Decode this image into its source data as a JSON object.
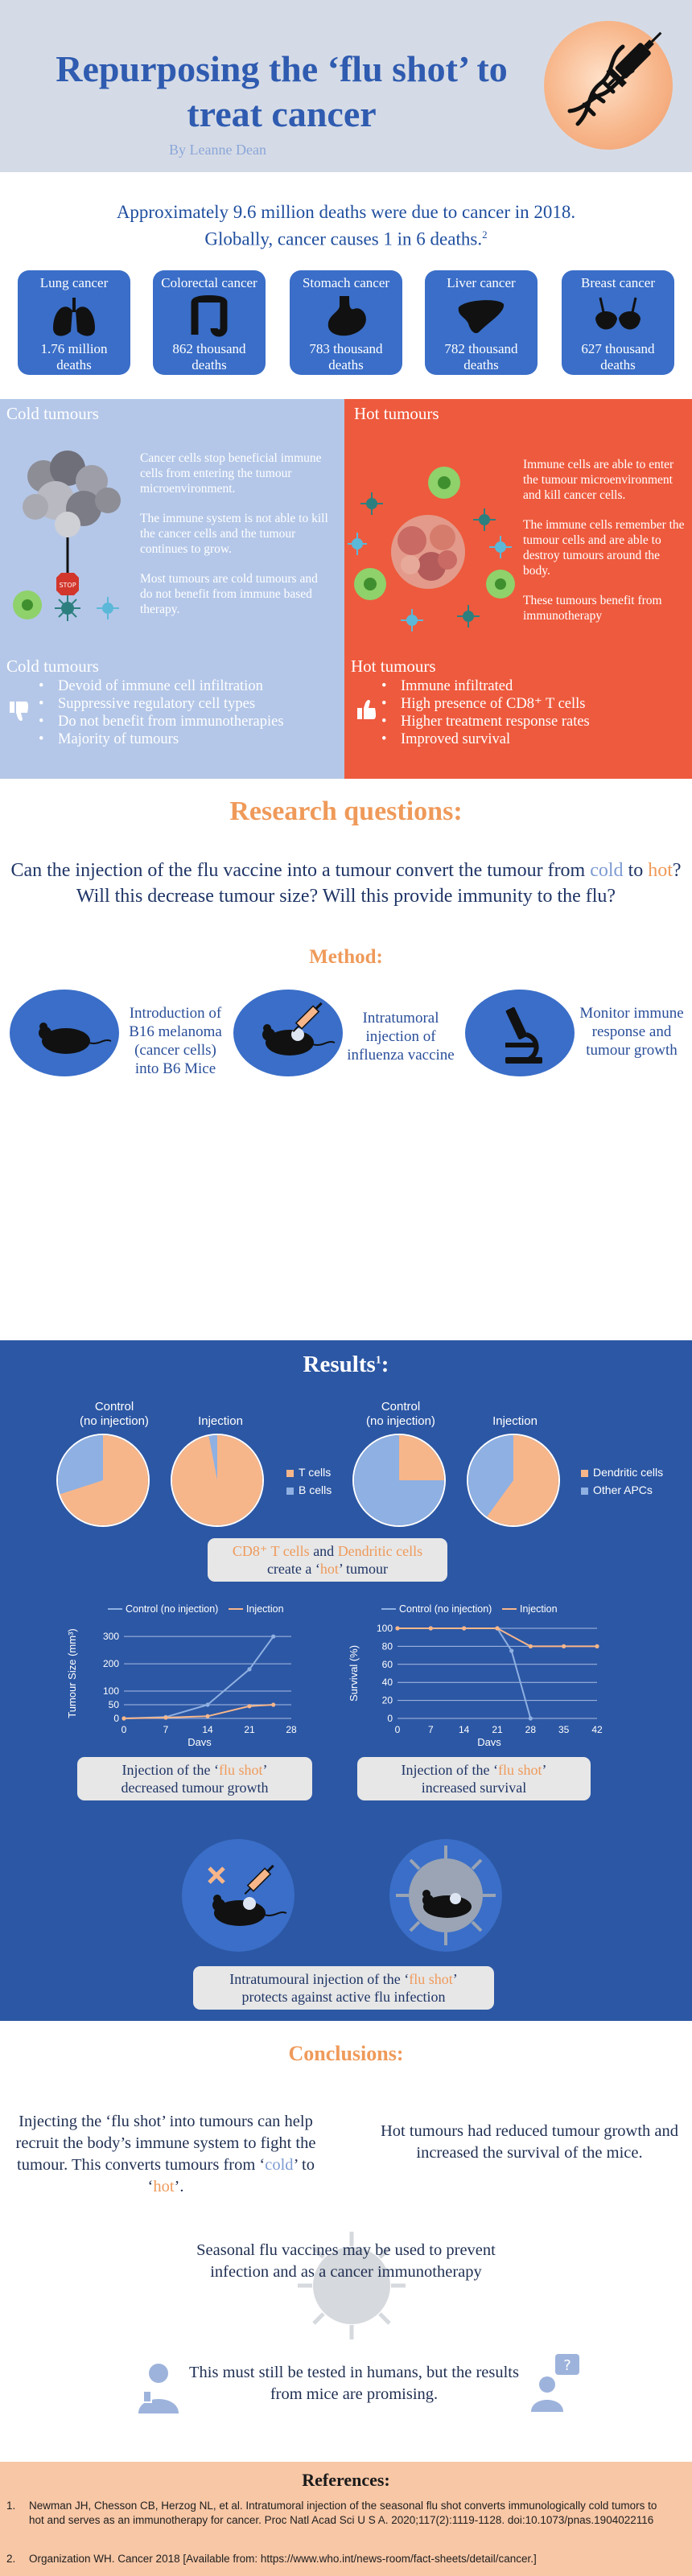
{
  "header": {
    "title": "Repurposing the ‘flu shot’ to treat cancer",
    "byline": "By Leanne Dean"
  },
  "stats": {
    "lead_line1": "Approximately 9.6 million deaths were due to cancer in 2018.",
    "lead_line2_pre": "Globally, cancer causes 1 in 6 deaths.",
    "lead_sup": "2",
    "cards": [
      {
        "name": "Lung cancer",
        "value_line1": "1.76 million",
        "value_line2": "deaths",
        "icon": "lungs-icon"
      },
      {
        "name": "Colorectal cancer",
        "value_line1": "862 thousand",
        "value_line2": "deaths",
        "icon": "colon-icon"
      },
      {
        "name": "Stomach cancer",
        "value_line1": "783 thousand",
        "value_line2": "deaths",
        "icon": "stomach-icon"
      },
      {
        "name": "Liver cancer",
        "value_line1": "782 thousand",
        "value_line2": "deaths",
        "icon": "liver-icon"
      },
      {
        "name": "Breast cancer",
        "value_line1": "627 thousand",
        "value_line2": "deaths",
        "icon": "breast-icon"
      }
    ]
  },
  "tumours": {
    "cold": {
      "title": "Cold tumours",
      "p1": "Cancer cells stop beneficial immune cells from entering the tumour microenvironment.",
      "p2": "The immune system is not able to kill the cancer cells and the tumour continues to grow.",
      "p3": "Most tumours are cold tumours and do not benefit from immune based therapy.",
      "stop_sign": "STOP",
      "list_title": "Cold tumours",
      "list": [
        "Devoid of immune cell infiltration",
        "Suppressive regulatory cell types",
        "Do not benefit from immunotherapies",
        "Majority of tumours"
      ]
    },
    "hot": {
      "title": "Hot tumours",
      "p1": "Immune cells are able to enter the tumour microenvironment and kill cancer cells.",
      "p2": "The immune cells remember the tumour cells and are able to destroy tumours around the body.",
      "p3": "These tumours benefit from immunotherapy",
      "list_title": "Hot tumours",
      "list": [
        "Immune infiltrated",
        "High presence of CD8⁺ T cells",
        "Higher treatment response rates",
        "Improved survival"
      ]
    }
  },
  "research": {
    "heading": "Research questions:",
    "q_part1": "Can the injection of the flu vaccine into a tumour convert the tumour from ",
    "q_cold": "cold",
    "q_part2": " to ",
    "q_hot": "hot",
    "q_part3": "? Will this decrease tumour size? Will this provide immunity to the flu?",
    "method_heading": "Method:",
    "steps": [
      {
        "line1": "Introduction of",
        "line2": "B16  melanoma",
        "line3": "(cancer cells)",
        "line4": "into B6 Mice"
      },
      {
        "line1": "Intratumoral",
        "line2": "injection of",
        "line3": "influenza vaccine",
        "line4": ""
      },
      {
        "line1": "Monitor immune",
        "line2": "response and",
        "line3": "tumour growth",
        "line4": ""
      }
    ]
  },
  "results": {
    "heading": "Results",
    "heading_sup": "1",
    "pie_labels": {
      "control_line1": "Control",
      "control_line2": "(no injection)",
      "injection": "Injection"
    },
    "legend_tcells": [
      "T cells",
      "B cells"
    ],
    "legend_dc": [
      "Dendritic cells",
      "Other APCs"
    ],
    "cd8_callout": {
      "part1": "CD8⁺ T cells",
      "and": " and ",
      "part2": "Dendritic cells",
      "line2_pre": "create a ‘",
      "hot": "hot",
      "line2_post": "’ tumour"
    },
    "growth_callout": {
      "pre": "Injection of the ‘",
      "accent": "flu shot",
      "post": "’",
      "line2": "decreased tumour growth"
    },
    "survival_callout": {
      "pre": "Injection of the ‘",
      "accent": "flu shot",
      "post": "’",
      "line2": "increased survival"
    },
    "flu_callout": {
      "pre": "Intratumoural injection of the ‘",
      "accent": "flu shot",
      "post": "’",
      "line2": "protects against active flu infection"
    }
  },
  "chart_data": [
    {
      "type": "pie",
      "title": "Control (no injection)",
      "labels": [
        "T cells",
        "B cells"
      ],
      "values": [
        70,
        30
      ],
      "colors": [
        "#f7b68a",
        "#8fb0e2"
      ]
    },
    {
      "type": "pie",
      "title": "Injection",
      "labels": [
        "T cells",
        "B cells"
      ],
      "values": [
        97,
        3
      ],
      "colors": [
        "#f7b68a",
        "#8fb0e2"
      ]
    },
    {
      "type": "pie",
      "title": "Control (no injection)",
      "labels": [
        "Dendritic cells",
        "Other APCs"
      ],
      "values": [
        25,
        75
      ],
      "colors": [
        "#f7b68a",
        "#8fb0e2"
      ]
    },
    {
      "type": "pie",
      "title": "Injection",
      "labels": [
        "Dendritic cells",
        "Other APCs"
      ],
      "values": [
        60,
        40
      ],
      "colors": [
        "#f7b68a",
        "#8fb0e2"
      ]
    },
    {
      "type": "line",
      "xlabel": "Days",
      "ylabel": "Tumour Size (mm³)",
      "xticks": [
        0,
        7,
        14,
        21,
        28
      ],
      "yticks": [
        0,
        50,
        100,
        200,
        300
      ],
      "xlim": [
        0,
        28
      ],
      "ylim": [
        0,
        330
      ],
      "series": [
        {
          "name": "Control (no injection)",
          "color": "#8fb0e2",
          "x": [
            0,
            7,
            14,
            21,
            25
          ],
          "y": [
            0,
            5,
            50,
            180,
            300
          ]
        },
        {
          "name": "Injection",
          "color": "#f7b68a",
          "x": [
            0,
            7,
            14,
            21,
            25
          ],
          "y": [
            0,
            3,
            8,
            45,
            50
          ]
        }
      ]
    },
    {
      "type": "line",
      "xlabel": "Days",
      "ylabel": "Survival (%)",
      "xticks": [
        0,
        7,
        14,
        21,
        28,
        35,
        42
      ],
      "yticks": [
        0,
        20,
        40,
        60,
        80,
        100
      ],
      "xlim": [
        0,
        42
      ],
      "ylim": [
        0,
        100
      ],
      "series": [
        {
          "name": "Control (no injection)",
          "color": "#8fb0e2",
          "x": [
            0,
            7,
            14,
            21,
            24,
            28
          ],
          "y": [
            100,
            100,
            100,
            100,
            75,
            0
          ]
        },
        {
          "name": "Injection",
          "color": "#f7b68a",
          "x": [
            0,
            7,
            14,
            21,
            28,
            35,
            42
          ],
          "y": [
            100,
            100,
            100,
            100,
            80,
            80,
            80
          ]
        }
      ]
    }
  ],
  "conclusions": {
    "heading": "Conclusions:",
    "left_pre": "Injecting the ‘flu shot’ into tumours can help recruit the body’s immune system to fight the tumour. This converts tumours from ‘",
    "left_cold": "cold",
    "left_mid": "’ to ‘",
    "left_hot": "hot",
    "left_post": "’.",
    "right": "Hot tumours had reduced tumour growth and increased the survival of the mice.",
    "center": "Seasonal flu vaccines may be used to prevent infection and as a cancer immunotherapy",
    "bottom": "This must still be tested in humans, but the results from mice are promising."
  },
  "references": {
    "heading": "References:",
    "items": [
      {
        "num": "1.",
        "text": "Newman JH, Chesson CB, Herzog NL, et al. Intratumoral injection of the seasonal flu shot converts immunologically cold tumors to hot and serves as an immunotherapy for cancer. Proc Natl Acad Sci U S A. 2020;117(2):1119-1128. doi:10.1073/pnas.1904022116"
      },
      {
        "num": "2.",
        "text": "Organization WH. Cancer 2018 [Available from: https://www.who.int/news-room/fact-sheets/detail/cancer.]"
      }
    ]
  }
}
